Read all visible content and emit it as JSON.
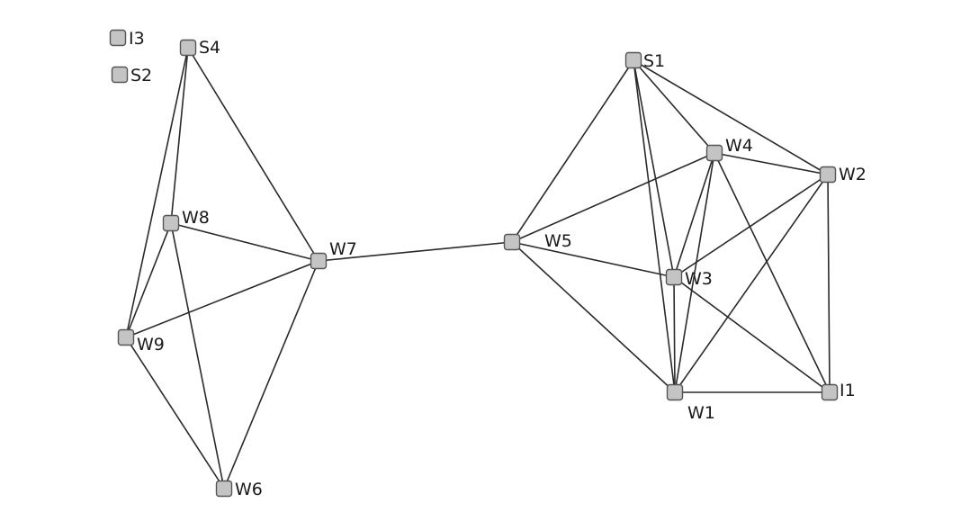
{
  "colors": {
    "edge": "#2a2a2a",
    "node_fill": "#c4c4c4",
    "node_stroke": "#555555",
    "label": "#1a1a1a"
  },
  "diagram": {
    "nodes": [
      {
        "id": "I3",
        "label": "I3"
      },
      {
        "id": "S2",
        "label": "S2"
      },
      {
        "id": "S4",
        "label": "S4"
      },
      {
        "id": "W8",
        "label": "W8"
      },
      {
        "id": "W9",
        "label": "W9"
      },
      {
        "id": "W7",
        "label": "W7"
      },
      {
        "id": "W6",
        "label": "W6"
      },
      {
        "id": "W5",
        "label": "W5"
      },
      {
        "id": "S1",
        "label": "S1"
      },
      {
        "id": "W4",
        "label": "W4"
      },
      {
        "id": "W2",
        "label": "W2"
      },
      {
        "id": "W3",
        "label": "W3"
      },
      {
        "id": "W1",
        "label": "W1"
      },
      {
        "id": "I1",
        "label": "I1"
      }
    ],
    "edges": [
      [
        "S4",
        "W8"
      ],
      [
        "S4",
        "W9"
      ],
      [
        "S4",
        "W7"
      ],
      [
        "W8",
        "W7"
      ],
      [
        "W8",
        "W9"
      ],
      [
        "W8",
        "W6"
      ],
      [
        "W9",
        "W7"
      ],
      [
        "W9",
        "W6"
      ],
      [
        "W7",
        "W6"
      ],
      [
        "W7",
        "W5"
      ],
      [
        "W5",
        "S1"
      ],
      [
        "W5",
        "W4"
      ],
      [
        "W5",
        "W3"
      ],
      [
        "W5",
        "W1"
      ],
      [
        "S1",
        "W4"
      ],
      [
        "S1",
        "W2"
      ],
      [
        "S1",
        "W3"
      ],
      [
        "S1",
        "W1"
      ],
      [
        "W4",
        "W2"
      ],
      [
        "W4",
        "W3"
      ],
      [
        "W4",
        "W1"
      ],
      [
        "W4",
        "I1"
      ],
      [
        "W2",
        "W3"
      ],
      [
        "W2",
        "W1"
      ],
      [
        "W2",
        "I1"
      ],
      [
        "W3",
        "W1"
      ],
      [
        "W3",
        "I1"
      ],
      [
        "W1",
        "I1"
      ]
    ]
  }
}
